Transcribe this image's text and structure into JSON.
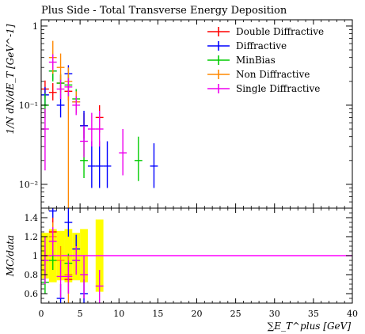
{
  "chart_data": {
    "type": "scatter",
    "title": "Plus Side - Total Transverse Energy Deposition",
    "main_panel": {
      "ylabel": "1/N dN/dE_T [GeV^-1]",
      "yscale": "log",
      "ylim": [
        0.005,
        1.2
      ],
      "yticks": [
        {
          "value": 1,
          "label": "1"
        },
        {
          "value": 0.1,
          "label": "10⁻¹"
        },
        {
          "value": 0.01,
          "label": "10⁻²"
        }
      ]
    },
    "ratio_panel": {
      "ylabel": "MC/data",
      "ylim": [
        0.5,
        1.5
      ],
      "yticks": [
        {
          "value": 0.6,
          "label": "0.6"
        },
        {
          "value": 0.8,
          "label": "0.8"
        },
        {
          "value": 1,
          "label": "1"
        },
        {
          "value": 1.2,
          "label": "1.2"
        },
        {
          "value": 1.4,
          "label": "1.4"
        }
      ],
      "reference_value": 1,
      "reference_color": "#ff00ff",
      "data_band_color": "#ffff00",
      "data_band": [
        {
          "x": 0.5,
          "lo": 0.76,
          "hi": 1.24
        },
        {
          "x": 1.5,
          "lo": 0.72,
          "hi": 1.28
        },
        {
          "x": 2.5,
          "lo": 0.74,
          "hi": 1.26
        },
        {
          "x": 3.5,
          "lo": 0.72,
          "hi": 1.28
        },
        {
          "x": 4.5,
          "lo": 0.74,
          "hi": 1.24
        },
        {
          "x": 5.5,
          "lo": 0.72,
          "hi": 1.28
        },
        {
          "x": 7.5,
          "lo": 0.62,
          "hi": 1.38
        }
      ]
    },
    "xlabel": "∑E_T^plus [GeV]",
    "xlim": [
      0,
      40
    ],
    "xticks": [
      0,
      5,
      10,
      15,
      20,
      25,
      30,
      35,
      40
    ],
    "legend_position": "top-right",
    "series": [
      {
        "name": "Double Diffractive",
        "color": "#ff0000",
        "points": [
          {
            "x": 0.5,
            "y": 0.16,
            "lo": 0.125,
            "hi": 0.205
          },
          {
            "x": 1.5,
            "y": 0.145,
            "lo": 0.115,
            "hi": 0.19
          },
          {
            "x": 2.5,
            "y": 0.19,
            "lo": 0.145,
            "hi": 0.24
          },
          {
            "x": 3.5,
            "y": 0.15,
            "lo": 0.115,
            "hi": 0.2
          },
          {
            "x": 5.5,
            "y": 0.055,
            "lo": 0.038,
            "hi": 0.08
          },
          {
            "x": 7.5,
            "y": 0.07,
            "lo": 0.045,
            "hi": 0.1
          }
        ],
        "ratio": [
          {
            "x": 1.5,
            "y": 1.25,
            "lo": 1.1,
            "hi": 1.4
          },
          {
            "x": 3.5,
            "y": 0.75,
            "lo": 0.6,
            "hi": 0.9
          }
        ]
      },
      {
        "name": "Diffractive",
        "color": "#0000ff",
        "points": [
          {
            "x": 0.5,
            "y": 0.135,
            "lo": 0.1,
            "hi": 0.17
          },
          {
            "x": 1.5,
            "y": 0.27,
            "lo": 0.21,
            "hi": 0.34
          },
          {
            "x": 2.5,
            "y": 0.1,
            "lo": 0.07,
            "hi": 0.14
          },
          {
            "x": 3.5,
            "y": 0.25,
            "lo": 0.2,
            "hi": 0.32
          },
          {
            "x": 4.5,
            "y": 0.11,
            "lo": 0.08,
            "hi": 0.15
          },
          {
            "x": 5.5,
            "y": 0.055,
            "lo": 0.035,
            "hi": 0.085
          },
          {
            "x": 6.5,
            "y": 0.017,
            "lo": 0.009,
            "hi": 0.035
          },
          {
            "x": 7.5,
            "y": 0.017,
            "lo": 0.009,
            "hi": 0.035
          },
          {
            "x": 8.5,
            "y": 0.017,
            "lo": 0.009,
            "hi": 0.035
          },
          {
            "x": 14.5,
            "y": 0.017,
            "lo": 0.009,
            "hi": 0.033
          }
        ],
        "ratio": [
          {
            "x": 1.5,
            "y": 1.47,
            "lo": 1.4,
            "hi": 1.5
          },
          {
            "x": 2.5,
            "y": 0.55,
            "lo": 0.5,
            "hi": 0.7
          },
          {
            "x": 3.5,
            "y": 1.35,
            "lo": 1.2,
            "hi": 1.5
          },
          {
            "x": 4.5,
            "y": 1.07,
            "lo": 0.92,
            "hi": 1.22
          },
          {
            "x": 5.5,
            "y": 0.6,
            "lo": 0.5,
            "hi": 0.75
          }
        ]
      },
      {
        "name": "MinBias",
        "color": "#00cc00",
        "points": [
          {
            "x": 0.5,
            "y": 0.1,
            "lo": 0.07,
            "hi": 0.14
          },
          {
            "x": 1.5,
            "y": 0.27,
            "lo": 0.2,
            "hi": 0.35
          },
          {
            "x": 2.5,
            "y": 0.19,
            "lo": 0.14,
            "hi": 0.25
          },
          {
            "x": 3.5,
            "y": 0.18,
            "lo": 0.13,
            "hi": 0.24
          },
          {
            "x": 4.5,
            "y": 0.12,
            "lo": 0.085,
            "hi": 0.16
          },
          {
            "x": 5.5,
            "y": 0.02,
            "lo": 0.012,
            "hi": 0.035
          },
          {
            "x": 12.5,
            "y": 0.02,
            "lo": 0.011,
            "hi": 0.04
          }
        ],
        "ratio": [
          {
            "x": 0.5,
            "y": 0.72,
            "lo": 0.6,
            "hi": 0.85
          },
          {
            "x": 1.5,
            "y": 0.95,
            "lo": 0.85,
            "hi": 1.05
          },
          {
            "x": 3.5,
            "y": 0.92,
            "lo": 0.82,
            "hi": 1.02
          },
          {
            "x": 4.5,
            "y": 0.95,
            "lo": 0.85,
            "hi": 1.05
          }
        ]
      },
      {
        "name": "Non Diffractive",
        "color": "#ff8800",
        "points": [
          {
            "x": 1.5,
            "y": 0.4,
            "lo": 0.25,
            "hi": 0.65
          },
          {
            "x": 2.5,
            "y": 0.3,
            "lo": 0.2,
            "hi": 0.45
          },
          {
            "x": 3.5,
            "y": 0.2,
            "lo": 0.005,
            "hi": 0.3
          },
          {
            "x": 4.5,
            "y": 0.11,
            "lo": 0.08,
            "hi": 0.15
          }
        ],
        "ratio": [
          {
            "x": 0.5,
            "y": 1.0,
            "lo": 0.9,
            "hi": 1.1
          },
          {
            "x": 1.5,
            "y": 1.2,
            "lo": 1.05,
            "hi": 1.35
          },
          {
            "x": 2.5,
            "y": 0.95,
            "lo": 0.8,
            "hi": 1.1
          },
          {
            "x": 3.5,
            "y": 0.8,
            "lo": 0.5,
            "hi": 1.0
          }
        ]
      },
      {
        "name": "Single Diffractive",
        "color": "#ee00ee",
        "points": [
          {
            "x": 0.5,
            "y": 0.05,
            "lo": 0.015,
            "hi": 0.09
          },
          {
            "x": 1.5,
            "y": 0.35,
            "lo": 0.28,
            "hi": 0.44
          },
          {
            "x": 2.5,
            "y": 0.16,
            "lo": 0.12,
            "hi": 0.21
          },
          {
            "x": 3.5,
            "y": 0.17,
            "lo": 0.13,
            "hi": 0.22
          },
          {
            "x": 4.5,
            "y": 0.1,
            "lo": 0.075,
            "hi": 0.13
          },
          {
            "x": 5.5,
            "y": 0.035,
            "lo": 0.022,
            "hi": 0.055
          },
          {
            "x": 6.5,
            "y": 0.05,
            "lo": 0.03,
            "hi": 0.08
          },
          {
            "x": 7.5,
            "y": 0.05,
            "lo": 0.03,
            "hi": 0.085
          },
          {
            "x": 10.5,
            "y": 0.025,
            "lo": 0.013,
            "hi": 0.05
          }
        ],
        "ratio": [
          {
            "x": 0.5,
            "y": 0.95,
            "lo": 0.7,
            "hi": 1.2
          },
          {
            "x": 1.5,
            "y": 1.15,
            "lo": 1.0,
            "hi": 1.3
          },
          {
            "x": 2.5,
            "y": 0.78,
            "lo": 0.55,
            "hi": 0.95
          },
          {
            "x": 3.5,
            "y": 0.78,
            "lo": 0.6,
            "hi": 0.95
          },
          {
            "x": 4.5,
            "y": 0.95,
            "lo": 0.8,
            "hi": 1.1
          },
          {
            "x": 5.5,
            "y": 0.8,
            "lo": 0.55,
            "hi": 1.0
          },
          {
            "x": 7.5,
            "y": 0.68,
            "lo": 0.5,
            "hi": 0.85
          }
        ]
      }
    ]
  }
}
